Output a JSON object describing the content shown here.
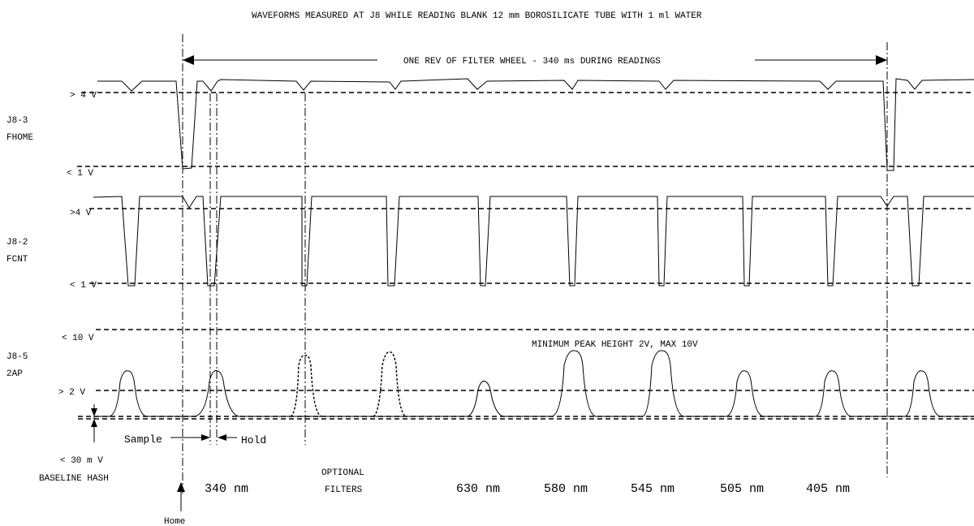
{
  "title": "WAVEFORMS MEASURED AT J8 WHILE READING BLANK 12 mm BOROSILICATE TUBE WITH 1 ml WATER",
  "rev_label": "ONE REV OF FILTER WHEEL - 340 ms DURING READINGS",
  "channels": {
    "fhome": {
      "name": "J8-3",
      "signal": "FHOME",
      "high_label": "> 4 V",
      "low_label": "< 1 V"
    },
    "fcnt": {
      "name": "J8-2",
      "signal": "FCNT",
      "high_label": ">4 V",
      "low_label": "< 1 V"
    },
    "twoap": {
      "name": "J8-5",
      "signal": "2AP",
      "max_label": "< 10 V",
      "min_label": "> 2 V",
      "peak_note": "MINIMUM PEAK HEIGHT 2V, MAX 10V"
    }
  },
  "baseline": {
    "level": "< 30 m V",
    "name": "BASELINE HASH"
  },
  "sample_label": "Sample",
  "hold_label": "Hold",
  "home_label": "Home",
  "optional_label_1": "OPTIONAL",
  "optional_label_2": "FILTERS",
  "wavelengths": {
    "w340": "340 nm",
    "w630": "630 nm",
    "w580": "580 nm",
    "w545": "545 nm",
    "w505": "505 nm",
    "w405": "405 nm"
  }
}
